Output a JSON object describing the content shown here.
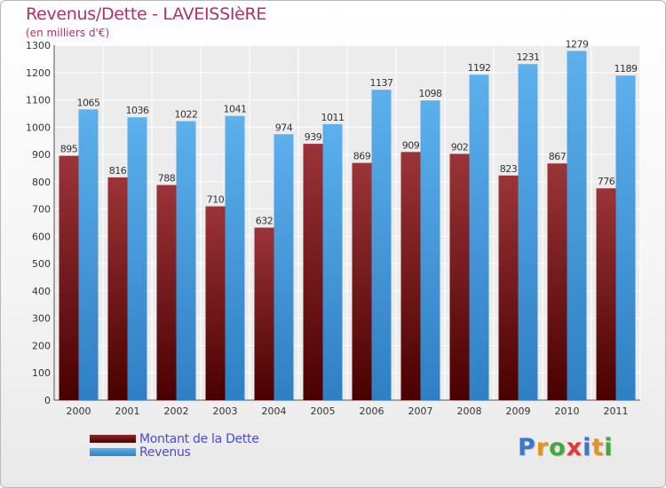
{
  "chart_data": {
    "type": "bar",
    "title": "Revenus/Dette - LAVEISSIèRE",
    "subtitle": "(en milliers d'€)",
    "categories": [
      "2000",
      "2001",
      "2002",
      "2003",
      "2004",
      "2005",
      "2006",
      "2007",
      "2008",
      "2009",
      "2010",
      "2011"
    ],
    "series": [
      {
        "name": "Montant de la Dette",
        "color": "#7a1a1f",
        "values": [
          895,
          816,
          788,
          710,
          632,
          939,
          869,
          909,
          902,
          823,
          867,
          776
        ]
      },
      {
        "name": "Revenus",
        "color": "#4aa1e0",
        "values": [
          1065,
          1036,
          1022,
          1041,
          974,
          1011,
          1137,
          1098,
          1192,
          1231,
          1279,
          1189
        ]
      }
    ],
    "ylim": [
      0,
      1300
    ],
    "yticks": [
      0,
      100,
      200,
      300,
      400,
      500,
      600,
      700,
      800,
      900,
      1000,
      1100,
      1200,
      1300
    ],
    "grid": true,
    "legend": "bottom-left"
  },
  "brand": {
    "letters": [
      {
        "ch": "P",
        "color": "#3a78c8"
      },
      {
        "ch": "r",
        "color": "#e8921a"
      },
      {
        "ch": "o",
        "color": "#43a83c"
      },
      {
        "ch": "x",
        "color": "#e23a3a"
      },
      {
        "ch": "i",
        "color": "#3a78c8"
      },
      {
        "ch": "t",
        "color": "#e8921a"
      },
      {
        "ch": "i",
        "color": "#43a83c"
      }
    ]
  }
}
